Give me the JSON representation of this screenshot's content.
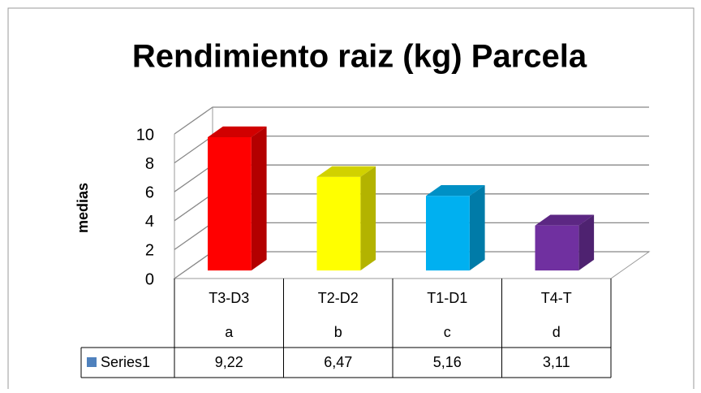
{
  "chart_data": {
    "type": "bar3d",
    "title": "Rendimiento raiz (kg) Parcela",
    "y_label": "medias",
    "categories": [
      "T3-D3",
      "T2-D2",
      "T1-D1",
      "T4-T"
    ],
    "subcategories": [
      "a",
      "b",
      "c",
      "d"
    ],
    "series": [
      {
        "name": "Series1",
        "color": "#4f81bd",
        "values": [
          9.22,
          6.47,
          5.16,
          3.11
        ],
        "value_labels": [
          "9,22",
          "6,47",
          "5,16",
          "3,11"
        ],
        "point_colors": [
          "#ff0000",
          "#ffff00",
          "#00b0f0",
          "#7030a0"
        ]
      }
    ],
    "ylim": [
      0,
      10
    ],
    "yticks": [
      0,
      2,
      4,
      6,
      8,
      10
    ],
    "grid": true,
    "data_table": true
  }
}
